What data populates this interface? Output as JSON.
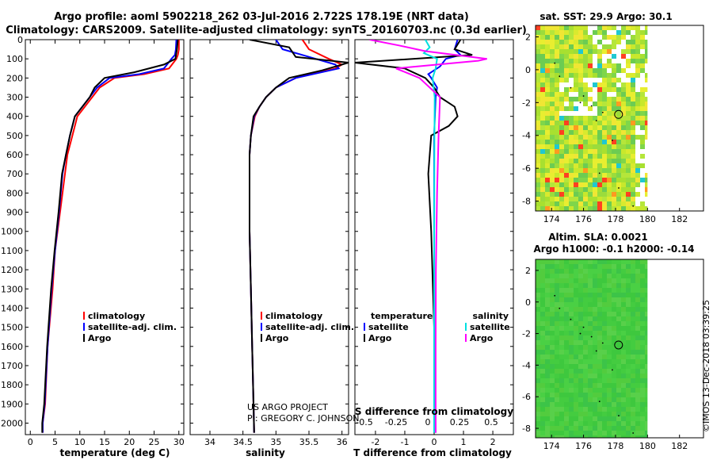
{
  "header": {
    "title_line1": "Argo profile: aoml 5902218_262 03-Jul-2016 2.722S 178.19E (NRT data)",
    "title_line2": "Climatology: CARS2009. Satellite-adjusted climatology: synTS_20160703.nc (0.3d earlier)"
  },
  "credits": {
    "project": "US ARGO PROJECT",
    "pi": "PI: GREGORY C. JOHNSON",
    "imos": "©IMOS 13-Dec-2018 03:39:25"
  },
  "colors": {
    "climatology": "#ff0000",
    "satellite": "#0000ff",
    "argo": "#000000",
    "salinity_satellite": "#00e0e0",
    "salinity_argo": "#ff00ff"
  },
  "chart_data": [
    {
      "id": "temperature",
      "type": "line",
      "xlabel": "temperature (deg C)",
      "ylabel": "",
      "xlim": [
        -1,
        31
      ],
      "ylim": [
        2060,
        0
      ],
      "xticks": [
        0,
        5,
        10,
        15,
        20,
        25,
        30
      ],
      "yticks": [
        0,
        100,
        200,
        300,
        400,
        500,
        600,
        700,
        800,
        900,
        1000,
        1100,
        1200,
        1300,
        1400,
        1500,
        1600,
        1700,
        1800,
        1900,
        2000
      ],
      "legend": [
        "climatology",
        "satellite-adj. clim.",
        "Argo"
      ],
      "series": [
        {
          "name": "climatology",
          "color": "#ff0000",
          "x": [
            30,
            30,
            29.8,
            29.5,
            28,
            23,
            17,
            14,
            12.5,
            11,
            9.5,
            8.5,
            7.5,
            7,
            6,
            5,
            4.5,
            3.5,
            3,
            2.5,
            2.5
          ],
          "y": [
            0,
            50,
            80,
            100,
            150,
            180,
            200,
            250,
            300,
            350,
            400,
            500,
            600,
            700,
            900,
            1100,
            1300,
            1600,
            1900,
            2000,
            2050
          ]
        },
        {
          "name": "satellite-adj. clim.",
          "color": "#0000ff",
          "x": [
            29.5,
            29.4,
            29.2,
            28.5,
            27,
            22,
            16,
            13.5,
            12,
            10.5,
            9,
            8,
            7.2,
            6.5,
            5.8,
            5,
            4.3,
            3.5,
            2.9,
            2.5,
            2.5
          ],
          "y": [
            0,
            50,
            80,
            100,
            150,
            180,
            200,
            250,
            300,
            350,
            400,
            500,
            600,
            700,
            900,
            1100,
            1300,
            1600,
            1900,
            2000,
            2050
          ]
        },
        {
          "name": "Argo",
          "color": "#000000",
          "x": [
            29.8,
            29.6,
            29.3,
            27,
            21,
            15,
            13,
            12,
            10.5,
            9,
            8,
            7.2,
            6.4,
            5.7,
            4.9,
            4.2,
            3.4,
            2.8,
            2.4,
            2.4
          ],
          "y": [
            0,
            50,
            100,
            130,
            170,
            200,
            250,
            300,
            350,
            400,
            500,
            600,
            700,
            900,
            1100,
            1300,
            1600,
            1900,
            2000,
            2050
          ]
        }
      ]
    },
    {
      "id": "salinity",
      "type": "line",
      "xlabel": "salinity",
      "xlim": [
        33.7,
        36.1
      ],
      "ylim": [
        2060,
        0
      ],
      "xticks": [
        34,
        34.5,
        35,
        35.5,
        36
      ],
      "legend": [
        "climatology",
        "satellite-adj. clim.",
        "Argo"
      ],
      "series": [
        {
          "name": "climatology",
          "color": "#ff0000",
          "x": [
            35.4,
            35.5,
            35.8,
            36.0,
            35.9,
            35.3,
            35.0,
            34.85,
            34.75,
            34.68,
            34.62,
            34.6,
            34.6,
            34.6,
            34.62,
            34.64,
            34.66,
            34.67
          ],
          "y": [
            0,
            50,
            100,
            130,
            150,
            200,
            250,
            300,
            350,
            400,
            500,
            600,
            800,
            1000,
            1300,
            1600,
            1900,
            2050
          ]
        },
        {
          "name": "satellite-adj. clim.",
          "color": "#0000ff",
          "x": [
            35.0,
            35.1,
            35.4,
            35.9,
            35.95,
            35.3,
            35.0,
            34.85,
            34.75,
            34.67,
            34.62,
            34.6,
            34.6,
            34.6,
            34.62,
            34.64,
            34.66,
            34.67
          ],
          "y": [
            0,
            50,
            80,
            130,
            150,
            200,
            250,
            300,
            350,
            400,
            500,
            600,
            800,
            1000,
            1300,
            1600,
            1900,
            2050
          ]
        },
        {
          "name": "Argo",
          "color": "#000000",
          "x": [
            34.6,
            35.2,
            35.3,
            36.1,
            35.7,
            35.2,
            35.0,
            34.85,
            34.75,
            34.66,
            34.62,
            34.6,
            34.6,
            34.6,
            34.62,
            34.64,
            34.66,
            34.67
          ],
          "y": [
            0,
            40,
            90,
            120,
            160,
            200,
            250,
            300,
            350,
            400,
            500,
            600,
            800,
            1000,
            1300,
            1600,
            1900,
            2050
          ]
        }
      ]
    },
    {
      "id": "difference",
      "type": "line",
      "xlabel": "T difference from climatology",
      "top_label": "S difference from climatology",
      "xlim": [
        -2.7,
        2.7
      ],
      "ylim": [
        2060,
        0
      ],
      "xticks": [
        -2,
        -1,
        0,
        1,
        2
      ],
      "top_ticks": [
        "-0.5",
        "-0.25",
        "0",
        "0.25",
        "0.5"
      ],
      "legend_left_title": "temperature",
      "legend_right_title": "salinity",
      "legend": [
        "satellite",
        "Argo",
        "satellite",
        "Argo"
      ],
      "series": [
        {
          "name": "T satellite",
          "color": "#0000ff",
          "x": [
            0.8,
            0.7,
            0.9,
            0.4,
            0.2,
            -0.2,
            -0.1,
            0.1,
            0.05,
            0,
            0,
            0,
            0.05
          ],
          "y": [
            0,
            50,
            80,
            100,
            140,
            180,
            200,
            250,
            300,
            500,
            1000,
            1500,
            2050
          ]
        },
        {
          "name": "T Argo",
          "color": "#000000",
          "x": [
            0.9,
            0.7,
            1.3,
            -2.7,
            -1,
            -0.3,
            0,
            0.2,
            0.7,
            0.8,
            0.5,
            -0.1,
            -0.2,
            -0.1,
            0,
            0
          ],
          "y": [
            0,
            50,
            80,
            120,
            150,
            200,
            250,
            300,
            350,
            400,
            450,
            500,
            700,
            1000,
            1500,
            2050
          ]
        },
        {
          "name": "S satellite",
          "color": "#00e0e0",
          "x": [
            -0.3,
            -0.15,
            -0.35,
            0.1,
            0.05,
            -0.05,
            0.02,
            0.01,
            0,
            0,
            0
          ],
          "y": [
            0,
            40,
            70,
            100,
            150,
            200,
            300,
            500,
            1000,
            1600,
            2050
          ]
        },
        {
          "name": "S Argo",
          "color": "#ff00ff",
          "x": [
            -2.2,
            -1.2,
            -0.3,
            1.8,
            1.5,
            -1.3,
            -0.5,
            0.2,
            0.15,
            0.1,
            0.06,
            0.05,
            0.05
          ],
          "y": [
            0,
            30,
            60,
            100,
            110,
            150,
            200,
            300,
            500,
            800,
            1200,
            1600,
            2050
          ]
        }
      ]
    },
    {
      "id": "sst_map",
      "type": "heatmap",
      "title": "sat. SST: 29.9 Argo: 30.1",
      "xlim": [
        173,
        183.5
      ],
      "ylim": [
        -8.6,
        2.7
      ],
      "xticks": [
        174,
        176,
        178,
        180,
        182
      ],
      "yticks": [
        2,
        0,
        -2,
        -4,
        -6,
        -8
      ],
      "data_extent": {
        "lon": [
          173,
          180
        ],
        "lat": [
          -8.6,
          2.7
        ]
      },
      "argo_position": {
        "lon": 178.19,
        "lat": -2.722
      }
    },
    {
      "id": "sla_map",
      "type": "heatmap",
      "title_line1": "Altim. SLA: 0.0021",
      "title_line2": "Argo h1000: -0.1 h2000: -0.14",
      "xlim": [
        173,
        183.5
      ],
      "ylim": [
        -8.6,
        2.7
      ],
      "xticks": [
        174,
        176,
        178,
        180,
        182
      ],
      "yticks": [
        2,
        0,
        -2,
        -4,
        -6,
        -8
      ],
      "data_extent": {
        "lon": [
          173,
          180
        ],
        "lat": [
          -8.6,
          2.7
        ]
      },
      "argo_position": {
        "lon": 178.19,
        "lat": -2.722
      }
    }
  ]
}
